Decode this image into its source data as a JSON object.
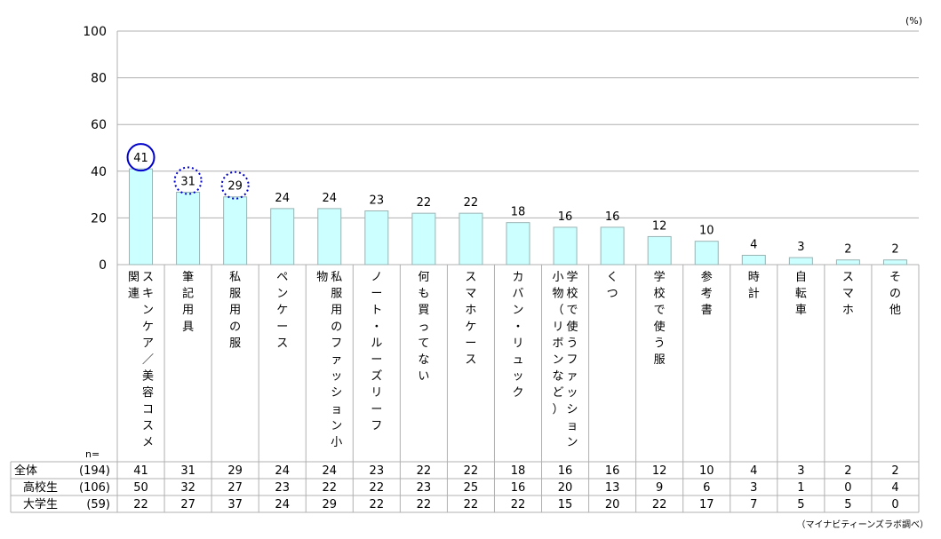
{
  "unit_label": "(%)",
  "n_label": "n=",
  "source": "（マイナビティーンズラボ調べ）",
  "colors": {
    "bar_fill": "#ccffff",
    "bar_stroke": "#99b3b3",
    "grid": "#b0b0b0",
    "highlight_solid": "#0000cc",
    "highlight_dotted": "#0000cc"
  },
  "chart_data": {
    "type": "bar",
    "ylim": [
      0,
      100
    ],
    "yticks": [
      0,
      20,
      40,
      60,
      80,
      100
    ],
    "grid": true,
    "categories": [
      "スキンケア／美容コスメ関連",
      "筆記用具",
      "私服用の服",
      "ペンケース",
      "私服用のファッション小物",
      "ノート・ルーズリーフ",
      "何も買ってない",
      "スマホケース",
      "カバン・リュック",
      "学校で使うファッション小物（リボンなど）",
      "くつ",
      "学校で使う服",
      "参考書",
      "時計",
      "自転車",
      "スマホ",
      "その他"
    ],
    "category_columns": [
      [
        "スキンケア／美容コスメ",
        "関連"
      ],
      [
        "筆記用具"
      ],
      [
        "私服用の服"
      ],
      [
        "ペンケース"
      ],
      [
        "私服用のファッション小",
        "物"
      ],
      [
        "ノート・ルーズリーフ"
      ],
      [
        "何も買ってない"
      ],
      [
        "スマホケース"
      ],
      [
        "カバン・リュック"
      ],
      [
        "学校で使うファッション",
        "小物（リボンなど）"
      ],
      [
        "くつ"
      ],
      [
        "学校で使う服"
      ],
      [
        "参考書"
      ],
      [
        "時計"
      ],
      [
        "自転車"
      ],
      [
        "スマホ"
      ],
      [
        "その他"
      ]
    ],
    "values": [
      41,
      31,
      29,
      24,
      24,
      23,
      22,
      22,
      18,
      16,
      16,
      12,
      10,
      4,
      3,
      2,
      2
    ],
    "highlights": [
      {
        "index": 0,
        "style": "solid"
      },
      {
        "index": 1,
        "style": "dotted"
      },
      {
        "index": 2,
        "style": "dotted"
      }
    ],
    "table": {
      "rows": [
        {
          "label": "全体",
          "n": "(194)",
          "values": [
            41,
            31,
            29,
            24,
            24,
            23,
            22,
            22,
            18,
            16,
            16,
            12,
            10,
            4,
            3,
            2,
            2
          ]
        },
        {
          "label": "高校生",
          "n": "(106)",
          "values": [
            50,
            32,
            27,
            23,
            22,
            22,
            23,
            25,
            16,
            20,
            13,
            9,
            6,
            3,
            1,
            0,
            4
          ]
        },
        {
          "label": "大学生",
          "n": "(59)",
          "values": [
            22,
            27,
            37,
            24,
            29,
            22,
            22,
            22,
            22,
            15,
            20,
            22,
            17,
            7,
            5,
            5,
            0
          ]
        }
      ]
    }
  }
}
